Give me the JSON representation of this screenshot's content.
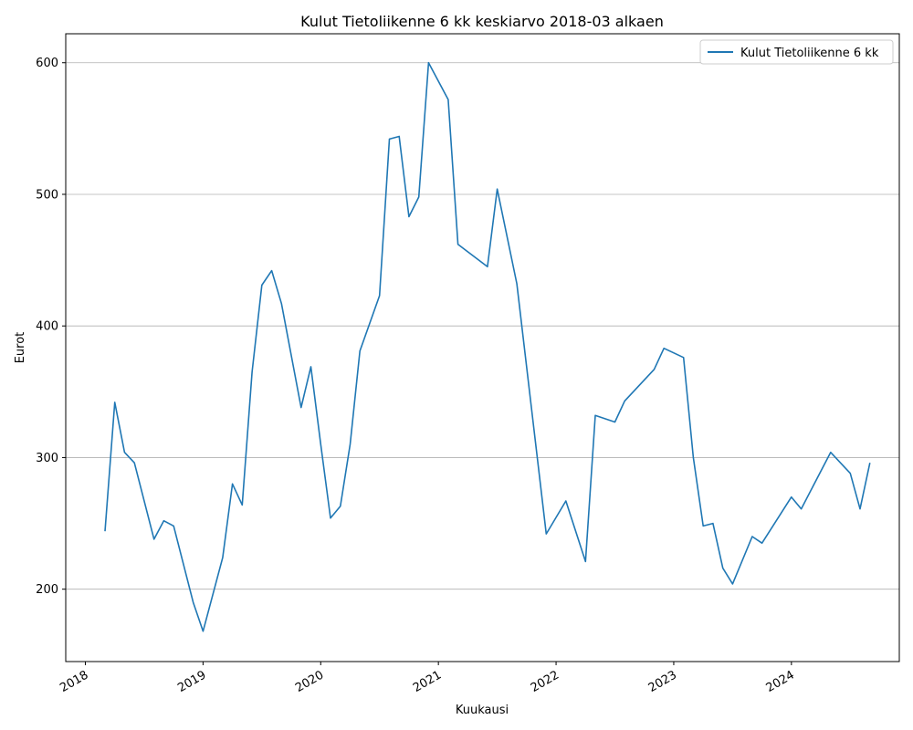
{
  "chart_data": {
    "type": "line",
    "title": "Kulut Tietoliikenne 6 kk keskiarvo 2018-03 alkaen",
    "xlabel": "Kuukausi",
    "ylabel": "Eurot",
    "xlim": [
      "2017-11",
      "2024-12"
    ],
    "ylim": [
      145,
      622
    ],
    "x_ticks": [
      "2018",
      "2019",
      "2020",
      "2021",
      "2022",
      "2023",
      "2024"
    ],
    "y_ticks": [
      200,
      300,
      400,
      500,
      600
    ],
    "grid": "horizontal",
    "legend_position": "top-right",
    "series": [
      {
        "name": "Kulut Tietoliikenne 6 kk",
        "color": "#1f77b4",
        "points": [
          [
            "2018-03",
            244
          ],
          [
            "2018-04",
            342
          ],
          [
            "2018-05",
            304
          ],
          [
            "2018-06",
            296
          ],
          [
            "2018-08",
            238
          ],
          [
            "2018-09",
            252
          ],
          [
            "2018-10",
            248
          ],
          [
            "2018-12",
            190
          ],
          [
            "2019-01",
            168
          ],
          [
            "2019-03",
            224
          ],
          [
            "2019-04",
            280
          ],
          [
            "2019-05",
            264
          ],
          [
            "2019-06",
            365
          ],
          [
            "2019-07",
            431
          ],
          [
            "2019-08",
            442
          ],
          [
            "2019-09",
            417
          ],
          [
            "2019-11",
            338
          ],
          [
            "2019-12",
            369
          ],
          [
            "2020-01",
            310
          ],
          [
            "2020-02",
            254
          ],
          [
            "2020-03",
            263
          ],
          [
            "2020-04",
            310
          ],
          [
            "2020-05",
            381
          ],
          [
            "2020-07",
            423
          ],
          [
            "2020-08",
            542
          ],
          [
            "2020-09",
            544
          ],
          [
            "2020-10",
            483
          ],
          [
            "2020-11",
            498
          ],
          [
            "2020-12",
            600
          ],
          [
            "2021-02",
            572
          ],
          [
            "2021-03",
            462
          ],
          [
            "2021-06",
            445
          ],
          [
            "2021-07",
            504
          ],
          [
            "2021-09",
            432
          ],
          [
            "2021-12",
            242
          ],
          [
            "2022-02",
            267
          ],
          [
            "2022-04",
            221
          ],
          [
            "2022-05",
            332
          ],
          [
            "2022-07",
            327
          ],
          [
            "2022-08",
            343
          ],
          [
            "2022-11",
            367
          ],
          [
            "2022-12",
            383
          ],
          [
            "2023-02",
            376
          ],
          [
            "2023-03",
            300
          ],
          [
            "2023-04",
            248
          ],
          [
            "2023-05",
            250
          ],
          [
            "2023-06",
            216
          ],
          [
            "2023-07",
            204
          ],
          [
            "2023-09",
            240
          ],
          [
            "2023-10",
            235
          ],
          [
            "2024-01",
            270
          ],
          [
            "2024-02",
            261
          ],
          [
            "2024-05",
            304
          ],
          [
            "2024-07",
            288
          ],
          [
            "2024-08",
            261
          ],
          [
            "2024-09",
            296
          ]
        ]
      }
    ]
  }
}
